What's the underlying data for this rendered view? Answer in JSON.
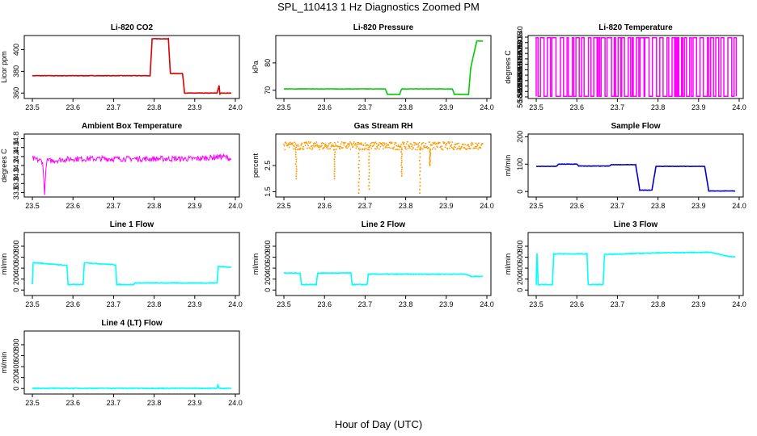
{
  "figure": {
    "title": "SPL_110413  1 Hz Diagnostics Zoomed PM",
    "xlabel": "Hour of Day (UTC)"
  },
  "colors": {
    "red": "#dd0000",
    "green": "#00cc00",
    "magenta": "#ff00ff",
    "orange": "#ff9900",
    "blue": "#0000cc",
    "cyan": "#00ffff"
  },
  "chart_data": [
    {
      "type": "line",
      "title": "Li-820 CO2",
      "ylabel": "Licor ppm",
      "color": "red",
      "xlim": [
        23.48,
        24.01
      ],
      "ylim": [
        355,
        413
      ],
      "xticks": [
        "23.5",
        "23.6",
        "23.7",
        "23.8",
        "23.9",
        "24.0"
      ],
      "yticks": [
        360,
        380,
        400
      ],
      "x": [
        23.5,
        23.6,
        23.7,
        23.79,
        23.795,
        23.835,
        23.84,
        23.87,
        23.875,
        23.955,
        23.96,
        23.962,
        23.965,
        23.99
      ],
      "y": [
        376,
        376,
        376,
        376,
        410,
        410,
        378,
        378,
        360,
        360,
        367,
        359,
        360,
        360
      ]
    },
    {
      "type": "line",
      "title": "Li-820 Pressure",
      "ylabel": "kPa",
      "color": "green",
      "xlim": [
        23.48,
        24.01
      ],
      "ylim": [
        67,
        90
      ],
      "xticks": [
        "23.5",
        "23.6",
        "23.7",
        "23.8",
        "23.9",
        "24.0"
      ],
      "yticks": [
        70,
        80
      ],
      "x": [
        23.5,
        23.75,
        23.755,
        23.785,
        23.79,
        23.915,
        23.92,
        23.955,
        23.96,
        23.975,
        23.99
      ],
      "y": [
        70.5,
        70.5,
        68.5,
        68.5,
        70.5,
        70.5,
        68.5,
        68.5,
        78,
        88,
        88
      ]
    },
    {
      "type": "line",
      "title": "Li-820 Temperature",
      "ylabel": "degrees C",
      "color": "magenta",
      "xlim": [
        23.48,
        24.01
      ],
      "ylim": [
        50.8835,
        50.9415
      ],
      "xticks": [
        "23.5",
        "23.6",
        "23.7",
        "23.8",
        "23.9",
        "24.0"
      ],
      "yticks": [
        "50.885",
        "50.890",
        "50.895",
        "50.900",
        "50.905",
        "50.910",
        "50.915",
        "50.920",
        "50.925",
        "50.930",
        "50.935",
        "50.940"
      ],
      "note": "signal toggles between two levels"
    },
    {
      "type": "line",
      "title": "Ambient Box Temperature",
      "ylabel": "degrees C",
      "color": "magenta",
      "xlim": [
        23.48,
        24.01
      ],
      "ylim": [
        33.5,
        34.9
      ],
      "xticks": [
        "23.5",
        "23.6",
        "23.7",
        "23.8",
        "23.9",
        "24.0"
      ],
      "yticks": [
        "33.6",
        "33.8",
        "34.0",
        "34.2",
        "34.4",
        "34.6",
        "34.8"
      ],
      "x": [
        23.5,
        23.525,
        23.53,
        23.535,
        23.6,
        23.7,
        23.8,
        23.9,
        23.97,
        23.99
      ],
      "y": [
        34.35,
        34.3,
        33.6,
        34.3,
        34.35,
        34.35,
        34.35,
        34.35,
        34.4,
        34.35
      ]
    },
    {
      "type": "scatter",
      "title": "Gas Stream RH",
      "ylabel": "percent",
      "color": "orange",
      "xlim": [
        23.48,
        24.01
      ],
      "ylim": [
        1.3,
        3.7
      ],
      "xticks": [
        "23.5",
        "23.6",
        "23.7",
        "23.8",
        "23.9",
        "24.0"
      ],
      "yticks": [
        "1.5",
        "2.5"
      ],
      "baseline": [
        3.1,
        3.4
      ],
      "dips": [
        {
          "x": 23.53,
          "y": 2.0
        },
        {
          "x": 23.625,
          "y": 2.0
        },
        {
          "x": 23.685,
          "y": 1.45
        },
        {
          "x": 23.71,
          "y": 1.6
        },
        {
          "x": 23.79,
          "y": 2.1
        },
        {
          "x": 23.835,
          "y": 1.45
        },
        {
          "x": 23.86,
          "y": 2.5
        }
      ]
    },
    {
      "type": "line",
      "title": "Sample Flow",
      "ylabel": "ml/min",
      "color": "blue",
      "xlim": [
        23.48,
        24.01
      ],
      "ylim": [
        -20,
        210
      ],
      "xticks": [
        "23.5",
        "23.6",
        "23.7",
        "23.8",
        "23.9",
        "24.0"
      ],
      "yticks": [
        0,
        100,
        200
      ],
      "x": [
        23.5,
        23.55,
        23.555,
        23.6,
        23.605,
        23.68,
        23.685,
        23.745,
        23.755,
        23.785,
        23.795,
        23.915,
        23.925,
        23.99
      ],
      "y": [
        92,
        92,
        100,
        100,
        93,
        93,
        98,
        98,
        5,
        5,
        92,
        92,
        2,
        2
      ]
    },
    {
      "type": "line",
      "title": "Line 1 Flow",
      "ylabel": "ml/min",
      "color": "cyan",
      "xlim": [
        23.48,
        24.01
      ],
      "ylim": [
        -100,
        1050
      ],
      "xticks": [
        "23.5",
        "23.6",
        "23.7",
        "23.8",
        "23.9",
        "24.0"
      ],
      "yticks": [
        0,
        200,
        400,
        600,
        800
      ],
      "x": [
        23.5,
        23.502,
        23.585,
        23.588,
        23.625,
        23.628,
        23.705,
        23.708,
        23.75,
        23.753,
        23.955,
        23.958,
        23.99
      ],
      "y": [
        100,
        500,
        450,
        100,
        100,
        500,
        460,
        100,
        100,
        130,
        130,
        430,
        420
      ]
    },
    {
      "type": "line",
      "title": "Line 2 Flow",
      "ylabel": "ml/min",
      "color": "cyan",
      "xlim": [
        23.48,
        24.01
      ],
      "ylim": [
        -100,
        1050
      ],
      "xticks": [
        "23.5",
        "23.6",
        "23.7",
        "23.8",
        "23.9",
        "24.0"
      ],
      "yticks": [
        0,
        200,
        400,
        600,
        800
      ],
      "x": [
        23.5,
        23.54,
        23.543,
        23.58,
        23.583,
        23.665,
        23.668,
        23.705,
        23.708,
        23.95,
        23.96,
        23.99
      ],
      "y": [
        310,
        310,
        100,
        100,
        310,
        310,
        100,
        100,
        290,
        290,
        250,
        250
      ]
    },
    {
      "type": "line",
      "title": "Line 3 Flow",
      "ylabel": "ml/min",
      "color": "cyan",
      "xlim": [
        23.48,
        24.01
      ],
      "ylim": [
        -100,
        1050
      ],
      "xticks": [
        "23.5",
        "23.6",
        "23.7",
        "23.8",
        "23.9",
        "24.0"
      ],
      "yticks": [
        0,
        200,
        400,
        600,
        800
      ],
      "x": [
        23.5,
        23.502,
        23.505,
        23.54,
        23.543,
        23.625,
        23.628,
        23.665,
        23.668,
        23.8,
        23.93,
        23.97,
        23.99
      ],
      "y": [
        100,
        680,
        100,
        100,
        660,
        660,
        100,
        100,
        650,
        680,
        690,
        620,
        600
      ]
    },
    {
      "type": "line",
      "title": "Line 4 (LT) Flow",
      "ylabel": "ml/min",
      "color": "cyan",
      "xlim": [
        23.48,
        24.01
      ],
      "ylim": [
        -100,
        1050
      ],
      "xticks": [
        "23.5",
        "23.6",
        "23.7",
        "23.8",
        "23.9",
        "24.0"
      ],
      "yticks": [
        0,
        200,
        400,
        600,
        800
      ],
      "x": [
        23.5,
        23.955,
        23.957,
        23.96,
        23.99
      ],
      "y": [
        5,
        5,
        60,
        5,
        5
      ]
    }
  ]
}
